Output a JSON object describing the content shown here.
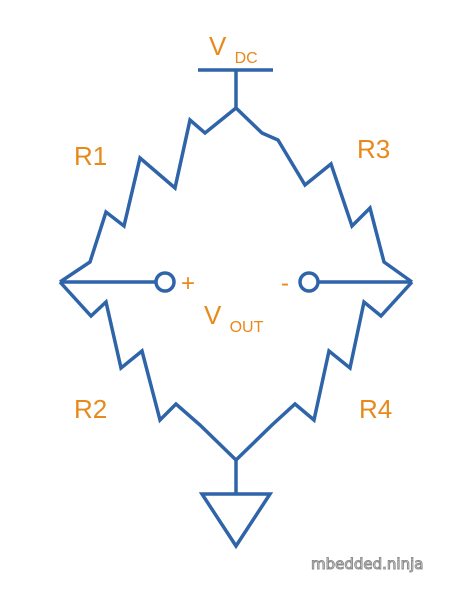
{
  "colors": {
    "wire": "#2F64A8",
    "label": "#E8891B",
    "watermark_outline": "#8a8a8a"
  },
  "supply": {
    "label": "V",
    "subscript": "DC"
  },
  "output": {
    "label": "V",
    "subscript": "OUT",
    "plus_sign": "+",
    "minus_sign": "-"
  },
  "resistors": {
    "r1": "R1",
    "r2": "R2",
    "r3": "R3",
    "r4": "R4"
  },
  "icons": {
    "ground": "ground-icon",
    "terminal": "open-terminal-icon"
  },
  "watermark": "mbedded.ninja"
}
